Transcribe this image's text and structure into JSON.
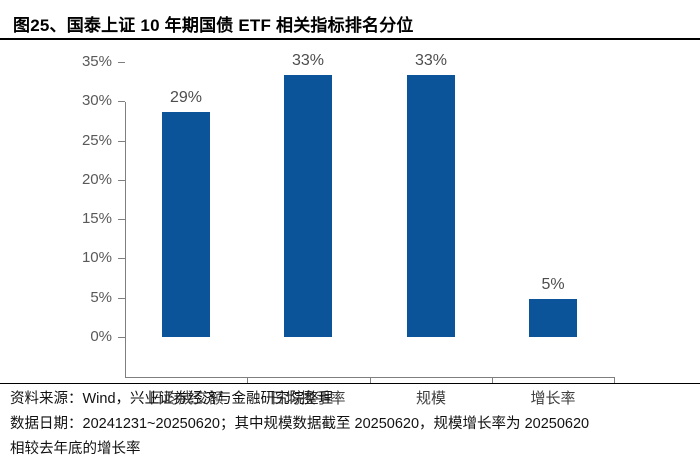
{
  "title": "图25、国泰上证 10 年期国债 ETF 相关指标排名分位",
  "footer": {
    "lines": [
      "资料来源：Wind，兴业证券经济与金融研究院整理",
      "数据日期：20241231~20250620；其中规模数据截至 20250620，规模增长率为 20250620",
      "相较去年底的增长率"
    ]
  },
  "colors": {
    "bar": "#0B5499",
    "axis": "#7F7F7F",
    "ytick_text": "#595959",
    "value_text": "#4D4D4D",
    "category_text": "#404040",
    "rule": "#000000"
  },
  "chart_data": {
    "type": "bar",
    "title": "国泰上证 10 年期国债 ETF 相关指标排名分位",
    "categories": [
      "日均成交额",
      "日均换手率",
      "规模",
      "增长率"
    ],
    "values": [
      28.6,
      33.3,
      33.3,
      4.8
    ],
    "value_labels": [
      "29%",
      "33%",
      "33%",
      "5%"
    ],
    "xlabel": "",
    "ylabel": "",
    "ylim": [
      0,
      35
    ],
    "yticks": [
      0,
      5,
      10,
      15,
      20,
      25,
      30,
      35
    ],
    "ytick_labels": [
      "0%",
      "5%",
      "10%",
      "15%",
      "20%",
      "25%",
      "30%",
      "35%"
    ],
    "grid": false,
    "legend_position": "none"
  }
}
